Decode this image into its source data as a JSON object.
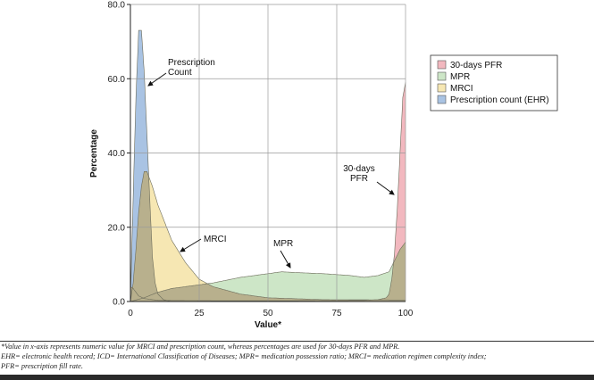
{
  "chart_data": {
    "type": "area",
    "xlabel": "Value*",
    "ylabel": "Percentage",
    "xlim": [
      0,
      100
    ],
    "ylim": [
      0,
      80
    ],
    "x_ticks": [
      "0",
      "25",
      "50",
      "75",
      "100"
    ],
    "y_ticks": [
      "0.0",
      "20.0",
      "40.0",
      "60.0",
      "80.0"
    ],
    "grid": "vertical",
    "legend_position": "right",
    "series": [
      {
        "name": "Prescription count (EHR)",
        "color": "#a9c3e3",
        "points": [
          [
            0,
            0
          ],
          [
            1,
            28
          ],
          [
            2,
            55
          ],
          [
            3,
            73
          ],
          [
            4,
            73
          ],
          [
            5,
            62
          ],
          [
            6,
            45
          ],
          [
            7,
            28
          ],
          [
            8,
            12
          ],
          [
            9,
            5
          ],
          [
            10,
            2
          ],
          [
            12,
            0.5
          ],
          [
            15,
            0
          ],
          [
            100,
            0
          ]
        ]
      },
      {
        "name": "MRCI",
        "color": "#f6e7b3",
        "points": [
          [
            0,
            0
          ],
          [
            1,
            5
          ],
          [
            2,
            14
          ],
          [
            3,
            24
          ],
          [
            4,
            31
          ],
          [
            5,
            35
          ],
          [
            6,
            35
          ],
          [
            8,
            31
          ],
          [
            10,
            26
          ],
          [
            15,
            16.5
          ],
          [
            20,
            10.5
          ],
          [
            25,
            6
          ],
          [
            30,
            4
          ],
          [
            40,
            2
          ],
          [
            50,
            1
          ],
          [
            70,
            0.5
          ],
          [
            100,
            0.4
          ]
        ]
      },
      {
        "name": "MPR",
        "color": "#cde6c7",
        "points": [
          [
            0,
            0
          ],
          [
            5,
            1
          ],
          [
            10,
            2.5
          ],
          [
            15,
            3.5
          ],
          [
            20,
            4
          ],
          [
            30,
            5
          ],
          [
            40,
            6.5
          ],
          [
            50,
            7.5
          ],
          [
            55,
            8
          ],
          [
            60,
            7.8
          ],
          [
            70,
            7.5
          ],
          [
            80,
            7
          ],
          [
            85,
            6.5
          ],
          [
            90,
            7
          ],
          [
            94,
            8
          ],
          [
            96,
            11
          ],
          [
            98,
            14
          ],
          [
            100,
            16
          ]
        ]
      },
      {
        "name": "30-days PFR",
        "color": "#f2b8bf",
        "points": [
          [
            0,
            4
          ],
          [
            1,
            3.5
          ],
          [
            2,
            2.5
          ],
          [
            3,
            1.5
          ],
          [
            5,
            0.8
          ],
          [
            10,
            0.3
          ],
          [
            30,
            0.2
          ],
          [
            60,
            0.2
          ],
          [
            85,
            0.3
          ],
          [
            90,
            0.5
          ],
          [
            93,
            1
          ],
          [
            94,
            2
          ],
          [
            95,
            6
          ],
          [
            96,
            13
          ],
          [
            97,
            25
          ],
          [
            98,
            40
          ],
          [
            99,
            55
          ],
          [
            100,
            59
          ]
        ]
      }
    ],
    "overlap_color": "#b8b08d",
    "annotations": [
      {
        "lines": [
          "Prescription",
          "Count"
        ],
        "x": 5,
        "y": 60
      },
      {
        "lines": [
          "MRCI"
        ],
        "x": 18,
        "y": 15
      },
      {
        "lines": [
          "MPR"
        ],
        "x": 58,
        "y": 9
      },
      {
        "lines": [
          "30-days",
          "PFR"
        ],
        "x": 96,
        "y": 28
      }
    ]
  },
  "legend": [
    {
      "label": "30-days PFR",
      "color": "#f2b8bf"
    },
    {
      "label": "MPR",
      "color": "#cde6c7"
    },
    {
      "label": "MRCI",
      "color": "#f6e7b3"
    },
    {
      "label": "Prescription count (EHR)",
      "color": "#a9c3e3"
    }
  ],
  "footnote": {
    "line1": "*Value in x-axis represents numeric value for MRCI and prescription count, whereas percentages are used for 30-days PFR and MPR.",
    "line2": "EHR= electronic health record; ICD= International Classification of Diseases; MPR= medication possession ratio; MRCI= medication regimen complexity index;",
    "line3": "PFR= prescription fill rate."
  }
}
